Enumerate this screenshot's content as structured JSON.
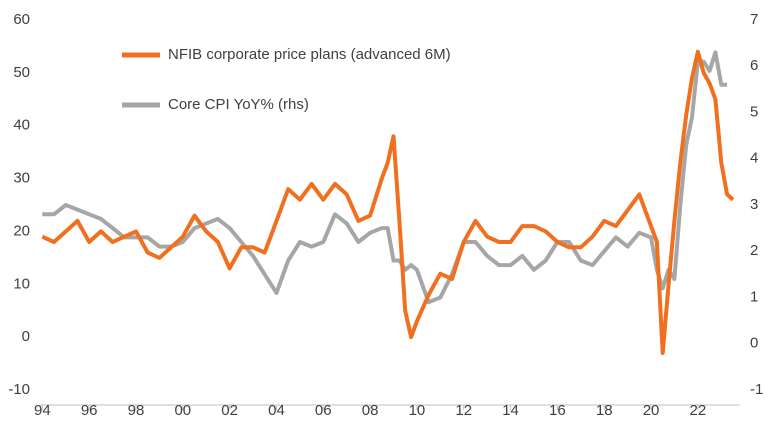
{
  "chart_data": {
    "type": "line",
    "x": [
      1994,
      1994.5,
      1995,
      1995.5,
      1996,
      1996.5,
      1997,
      1997.5,
      1998,
      1998.5,
      1999,
      1999.5,
      2000,
      2000.5,
      2001,
      2001.5,
      2002,
      2002.5,
      2003,
      2003.5,
      2004,
      2004.5,
      2005,
      2005.5,
      2006,
      2006.5,
      2007,
      2007.5,
      2008,
      2008.5,
      2008.75,
      2009,
      2009.25,
      2009.5,
      2009.75,
      2010,
      2010.5,
      2011,
      2011.5,
      2012,
      2012.5,
      2013,
      2013.5,
      2014,
      2014.5,
      2015,
      2015.5,
      2016,
      2016.5,
      2017,
      2017.5,
      2018,
      2018.5,
      2019,
      2019.5,
      2020,
      2020.25,
      2020.5,
      2020.75,
      2021,
      2021.25,
      2021.5,
      2021.75,
      2022,
      2022.25,
      2022.5,
      2022.75,
      2023,
      2023.25,
      2023.5
    ],
    "series": [
      {
        "name": "NFIB corporate price plans (advanced 6M)",
        "color": "#f07020",
        "values": [
          19,
          18,
          20,
          22,
          18,
          20,
          18,
          19,
          20,
          16,
          15,
          17,
          19,
          23,
          20,
          18,
          13,
          17,
          17,
          16,
          22,
          28,
          26,
          29,
          26,
          29,
          27,
          22,
          23,
          30,
          33,
          38,
          22,
          5,
          0,
          3,
          8,
          12,
          11,
          18,
          22,
          19,
          18,
          18,
          21,
          21,
          20,
          18,
          17,
          17,
          19,
          22,
          21,
          24,
          27,
          21,
          18,
          -3,
          10,
          22,
          33,
          42,
          49,
          54,
          50,
          48,
          45,
          33,
          27,
          26
        ]
      },
      {
        "name": "Core CPI YoY% (rhs)",
        "color": "#a6a6a6",
        "axis": "y2",
        "values": [
          2.8,
          2.8,
          3.0,
          2.9,
          2.8,
          2.7,
          2.5,
          2.3,
          2.3,
          2.3,
          2.1,
          2.1,
          2.2,
          2.5,
          2.6,
          2.7,
          2.5,
          2.2,
          1.9,
          1.5,
          1.1,
          1.8,
          2.2,
          2.1,
          2.2,
          2.8,
          2.6,
          2.2,
          2.4,
          2.5,
          2.5,
          1.8,
          1.8,
          1.6,
          1.7,
          1.6,
          0.9,
          1.0,
          1.5,
          2.2,
          2.2,
          1.9,
          1.7,
          1.7,
          1.9,
          1.6,
          1.8,
          2.2,
          2.2,
          1.8,
          1.7,
          2.0,
          2.3,
          2.1,
          2.4,
          2.3,
          1.6,
          1.2,
          1.6,
          1.4,
          3.0,
          4.3,
          4.9,
          6.1,
          6.1,
          5.9,
          6.3,
          5.6,
          5.6,
          null
        ]
      }
    ],
    "xlim": [
      1993.9,
      2023.8
    ],
    "xticks": [
      {
        "value": 1994,
        "label": "94"
      },
      {
        "value": 1996,
        "label": "96"
      },
      {
        "value": 1998,
        "label": "98"
      },
      {
        "value": 2000,
        "label": "00"
      },
      {
        "value": 2002,
        "label": "02"
      },
      {
        "value": 2004,
        "label": "04"
      },
      {
        "value": 2006,
        "label": "06"
      },
      {
        "value": 2008,
        "label": "08"
      },
      {
        "value": 2010,
        "label": "10"
      },
      {
        "value": 2012,
        "label": "12"
      },
      {
        "value": 2014,
        "label": "14"
      },
      {
        "value": 2016,
        "label": "16"
      },
      {
        "value": 2018,
        "label": "18"
      },
      {
        "value": 2020,
        "label": "20"
      },
      {
        "value": 2022,
        "label": "22"
      }
    ],
    "ylim": [
      -10,
      60
    ],
    "yticks": [
      -10,
      0,
      10,
      20,
      30,
      40,
      50,
      60
    ],
    "y2lim": [
      -1,
      7
    ],
    "y2ticks": [
      -1,
      0,
      1,
      2,
      3,
      4,
      5,
      6,
      7
    ]
  }
}
